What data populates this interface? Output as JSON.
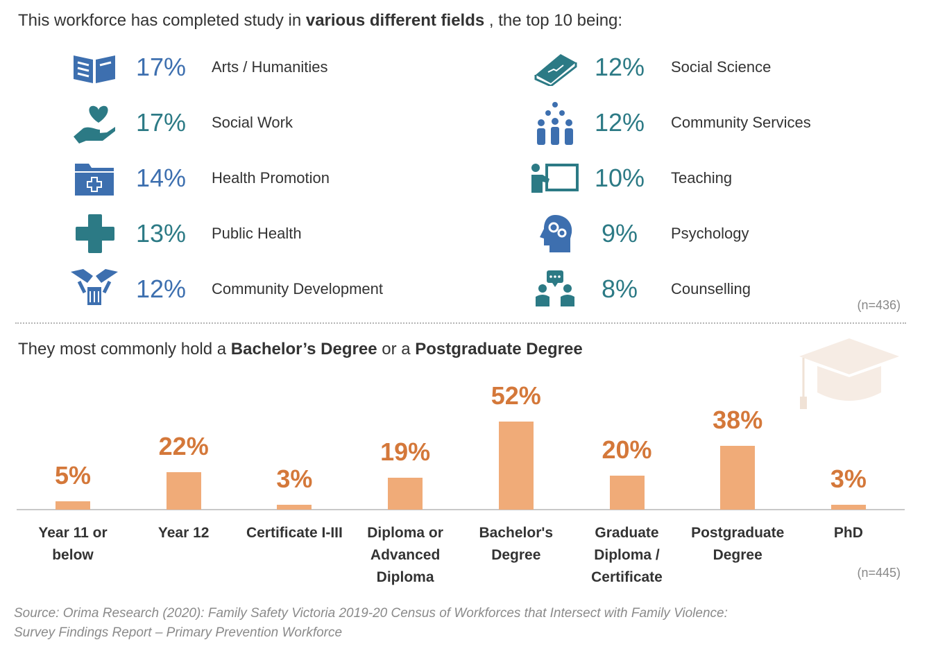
{
  "heading": [
    "This workforce has completed study in ",
    "various different fields",
    " , the top 10 being:"
  ],
  "fields": [
    {
      "percent": "17%",
      "label": "Arts / Humanities"
    },
    {
      "percent": "17%",
      "label": "Social Work"
    },
    {
      "percent": "14%",
      "label": "Health Promotion"
    },
    {
      "percent": "13%",
      "label": "Public Health"
    },
    {
      "percent": "12%",
      "label": "Community Development"
    },
    {
      "percent": "12%",
      "label": "Social Science"
    },
    {
      "percent": "12%",
      "label": "Community Services"
    },
    {
      "percent": "10%",
      "label": "Teaching"
    },
    {
      "percent": "9%",
      "label": "Psychology"
    },
    {
      "percent": "8%",
      "label": "Counselling"
    }
  ],
  "fields_n": "(n=436)",
  "chart_data": {
    "type": "bar",
    "title": [
      "They most commonly hold a ",
      "Bachelor’s Degree",
      " or a ",
      "Postgraduate Degree"
    ],
    "categories": [
      "Year 11 or\nbelow",
      "Year 12",
      "Certificate I-III",
      "Diploma or\nAdvanced\nDiploma",
      "Bachelor's\nDegree",
      "Graduate\nDiploma /\nCertificate",
      "Postgraduate\nDegree",
      "PhD"
    ],
    "values": [
      5,
      22,
      3,
      19,
      52,
      20,
      38,
      3
    ],
    "value_labels": [
      "5%",
      "22%",
      "3%",
      "19%",
      "52%",
      "20%",
      "38%",
      "3%"
    ],
    "color": "#f0ab78",
    "ylim": [
      0,
      60
    ],
    "n": "(n=445)"
  },
  "source": [
    "Source: Orima Research (2020): Family Safety Victoria 2019-20 Census of Workforces that Intersect with Family Violence:",
    "Survey Findings Report – Primary Prevention Workforce"
  ]
}
